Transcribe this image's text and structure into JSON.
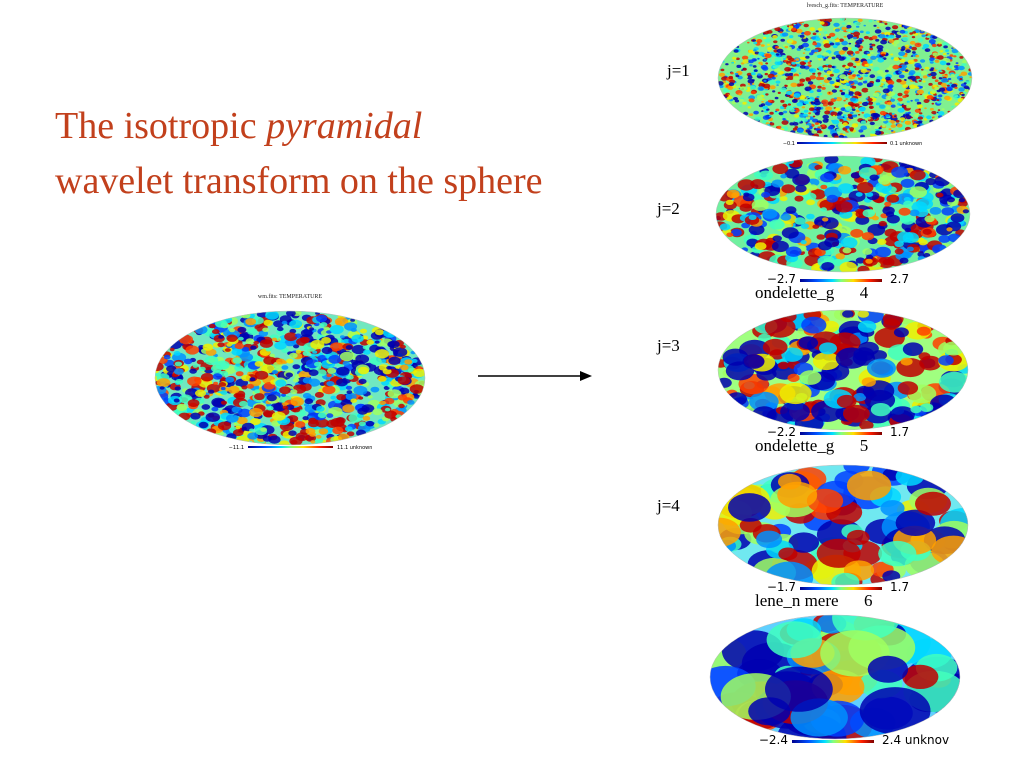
{
  "title": {
    "line1_prefix": "The isotropic ",
    "line1_italic": "pyramidal",
    "line2": "wavelet transform on the sphere"
  },
  "scale_labels": [
    "j=1",
    "j=2",
    "j=3",
    "j=4"
  ],
  "input_map": {
    "title": "wm.fits: TEMPERATURE",
    "min": "−11.1",
    "max": "11.1 unknown"
  },
  "output_maps": [
    {
      "title": "lvesch_g.fits: TEMPERATURE",
      "min": "−0.1",
      "max": "0.1 unknown"
    },
    {
      "min": "−2.7",
      "max": "2.7",
      "caption": "ondelette_g      4"
    },
    {
      "min": "−2.2",
      "max": "1.7",
      "caption": "ondelette_g      5"
    },
    {
      "min": "−1.7",
      "max": "1.7",
      "caption": "lene_n mere      6"
    },
    {
      "min": "−2.4",
      "max": "2.4 unknov"
    }
  ]
}
